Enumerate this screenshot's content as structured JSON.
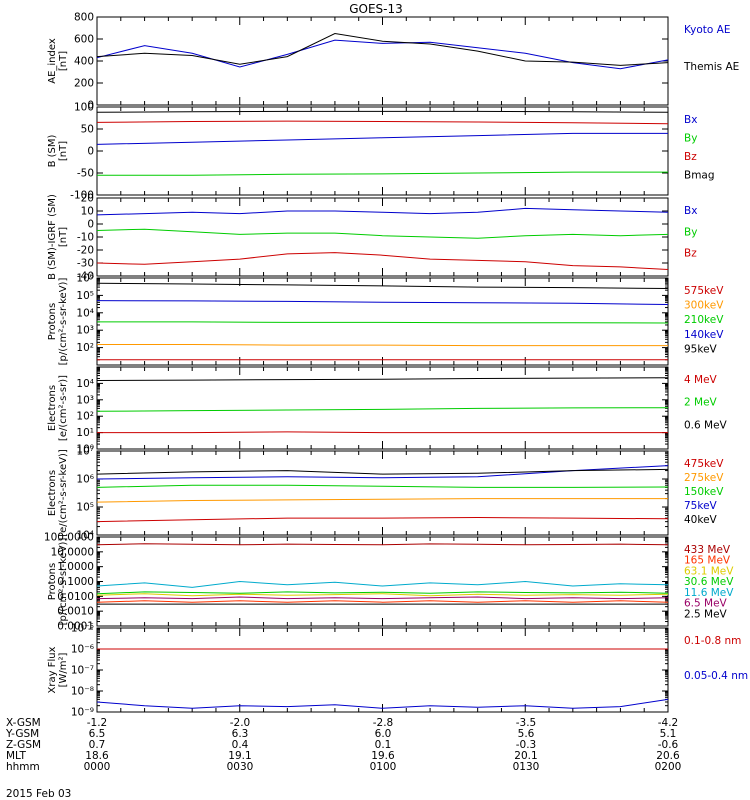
{
  "title": "GOES-13",
  "footer": {
    "rows": [
      {
        "label": "X-GSM",
        "values": [
          "-1.2",
          "-2.0",
          "-2.8",
          "-3.5",
          "-4.2"
        ]
      },
      {
        "label": "Y-GSM",
        "values": [
          "6.5",
          "6.3",
          "6.0",
          "5.6",
          "5.1"
        ]
      },
      {
        "label": "Z-GSM",
        "values": [
          "0.7",
          "0.4",
          "0.1",
          "-0.3",
          "-0.6"
        ]
      },
      {
        "label": "MLT",
        "values": [
          "18.6",
          "19.1",
          "19.6",
          "20.1",
          "20.6"
        ]
      },
      {
        "label": "hhmm",
        "values": [
          "0000",
          "0030",
          "0100",
          "0130",
          "0200"
        ]
      }
    ],
    "date": "2015 Feb 03"
  },
  "chart_data": [
    {
      "type": "line",
      "ylabel": [
        "AE_index",
        "[nT]"
      ],
      "scale": "linear",
      "ylim": [
        0,
        800
      ],
      "yticks": [
        0,
        200,
        400,
        600,
        800
      ],
      "ytick_labels": [
        "0",
        "200",
        "400",
        "600",
        "800"
      ],
      "x": [
        0,
        10,
        20,
        30,
        40,
        50,
        60,
        70,
        80,
        90,
        100,
        110,
        120
      ],
      "series": [
        {
          "name": "Kyoto AE",
          "color": "#0000cc",
          "values": [
            430,
            540,
            470,
            345,
            460,
            590,
            560,
            570,
            520,
            470,
            385,
            330,
            410
          ]
        },
        {
          "name": "Themis AE",
          "color": "#000000",
          "values": [
            440,
            470,
            450,
            370,
            440,
            650,
            580,
            555,
            490,
            400,
            390,
            360,
            385
          ]
        }
      ]
    },
    {
      "type": "line",
      "ylabel": [
        "B (SM)",
        "[nT]"
      ],
      "scale": "linear",
      "ylim": [
        -100,
        100
      ],
      "yticks": [
        -100,
        -50,
        0,
        50,
        100
      ],
      "ytick_labels": [
        "-100",
        "-50",
        "0",
        "50",
        "100"
      ],
      "x": [
        0,
        20,
        40,
        60,
        80,
        100,
        120
      ],
      "series": [
        {
          "name": "Bx",
          "color": "#0000cc",
          "values": [
            15,
            20,
            25,
            30,
            35,
            40,
            40
          ]
        },
        {
          "name": "By",
          "color": "#00cc00",
          "values": [
            -55,
            -55,
            -53,
            -52,
            -50,
            -48,
            -48
          ]
        },
        {
          "name": "Bz",
          "color": "#cc0000",
          "values": [
            65,
            67,
            68,
            67,
            66,
            64,
            62
          ]
        },
        {
          "name": "Bmag",
          "color": "#000000",
          "values": [
            88,
            89,
            90,
            90,
            90,
            89,
            88
          ]
        }
      ]
    },
    {
      "type": "line",
      "ylabel": [
        "B (SM)-IGRF (SM)",
        "[nT]"
      ],
      "scale": "linear",
      "ylim": [
        -40,
        20
      ],
      "yticks": [
        -40,
        -30,
        -20,
        -10,
        0,
        10,
        20
      ],
      "ytick_labels": [
        "-40",
        "-30",
        "-20",
        "-10",
        "0",
        "10",
        "20"
      ],
      "x": [
        0,
        10,
        20,
        30,
        40,
        50,
        60,
        70,
        80,
        90,
        100,
        110,
        120
      ],
      "series": [
        {
          "name": "Bx",
          "color": "#0000cc",
          "values": [
            7,
            8,
            9,
            8,
            10,
            10,
            9,
            8,
            9,
            12,
            11,
            10,
            9
          ]
        },
        {
          "name": "By",
          "color": "#00cc00",
          "values": [
            -5,
            -4,
            -6,
            -8,
            -7,
            -7,
            -9,
            -10,
            -11,
            -9,
            -8,
            -9,
            -8
          ]
        },
        {
          "name": "Bz",
          "color": "#cc0000",
          "values": [
            -30,
            -31,
            -29,
            -27,
            -23,
            -22,
            -24,
            -27,
            -28,
            -29,
            -32,
            -33,
            -35
          ]
        }
      ]
    },
    {
      "type": "line",
      "ylabel": [
        "Protons",
        "[p/(cm²-s-sr-keV)]"
      ],
      "scale": "log",
      "ylim": [
        10,
        1000000
      ],
      "yticks": [
        100,
        1000,
        10000,
        100000,
        1000000
      ],
      "ytick_labels": [
        "10²",
        "10³",
        "10⁴",
        "10⁵",
        "10⁶"
      ],
      "x": [
        0,
        20,
        40,
        60,
        80,
        100,
        120
      ],
      "series": [
        {
          "name": "575keV",
          "color": "#cc0000",
          "values": [
            20,
            20,
            20,
            20,
            20,
            20,
            20
          ]
        },
        {
          "name": "300keV",
          "color": "#ff9900",
          "values": [
            150,
            150,
            140,
            140,
            130,
            130,
            130
          ]
        },
        {
          "name": "210keV",
          "color": "#00cc00",
          "values": [
            3000,
            3000,
            2800,
            2800,
            2700,
            2700,
            2600
          ]
        },
        {
          "name": "140keV",
          "color": "#0000cc",
          "values": [
            50000,
            48000,
            45000,
            40000,
            38000,
            35000,
            30000
          ]
        },
        {
          "name": "95keV",
          "color": "#000000",
          "values": [
            500000,
            450000,
            400000,
            350000,
            300000,
            280000,
            250000
          ]
        }
      ]
    },
    {
      "type": "line",
      "ylabel": [
        "Electrons",
        "[e/(cm²-s-sr)]"
      ],
      "scale": "log",
      "ylim": [
        1,
        100000
      ],
      "yticks": [
        1,
        10,
        100,
        1000,
        10000
      ],
      "ytick_labels": [
        "10⁰",
        "10¹",
        "10²",
        "10³",
        "10⁴"
      ],
      "x": [
        0,
        20,
        40,
        60,
        80,
        100,
        120
      ],
      "series": [
        {
          "name": "4 MeV",
          "color": "#cc0000",
          "values": [
            10,
            10,
            11,
            10,
            10,
            10,
            10
          ]
        },
        {
          "name": "2 MeV",
          "color": "#00cc00",
          "values": [
            200,
            220,
            240,
            260,
            300,
            320,
            330
          ]
        },
        {
          "name": "0.6 MeV",
          "color": "#000000",
          "values": [
            15000,
            16000,
            17000,
            18000,
            20000,
            21000,
            22000
          ]
        }
      ]
    },
    {
      "type": "line",
      "ylabel": [
        "Electrons",
        "[e/(cm²-s-sr-keV)]"
      ],
      "scale": "log",
      "ylim": [
        10000,
        10000000
      ],
      "yticks": [
        10000,
        100000,
        1000000,
        10000000
      ],
      "ytick_labels": [
        "10⁴",
        "10⁵",
        "10⁶",
        "10⁷"
      ],
      "x": [
        0,
        20,
        40,
        60,
        80,
        100,
        120
      ],
      "series": [
        {
          "name": "475keV",
          "color": "#cc0000",
          "values": [
            30000,
            35000,
            40000,
            40000,
            42000,
            40000,
            38000
          ]
        },
        {
          "name": "275keV",
          "color": "#ff9900",
          "values": [
            150000,
            170000,
            180000,
            190000,
            200000,
            200000,
            200000
          ]
        },
        {
          "name": "150keV",
          "color": "#00cc00",
          "values": [
            500000,
            600000,
            600000,
            550000,
            500000,
            500000,
            520000
          ]
        },
        {
          "name": "75keV",
          "color": "#0000cc",
          "values": [
            1000000,
            1100000,
            1200000,
            1100000,
            1200000,
            2000000,
            3000000
          ]
        },
        {
          "name": "40keV",
          "color": "#000000",
          "values": [
            1500000,
            1800000,
            2000000,
            1500000,
            1600000,
            2000000,
            2200000
          ]
        }
      ]
    },
    {
      "type": "line",
      "ylabel": [
        "Protons",
        "[p/(cm²-s-sr-keV)]"
      ],
      "scale": "log",
      "ylim": [
        0.0001,
        100
      ],
      "yticks": [
        0.0001,
        0.001,
        0.01,
        0.1,
        1,
        10,
        100
      ],
      "ytick_labels": [
        "0.0001",
        "0.0010",
        "0.0100",
        "0.1000",
        "1.0000",
        "10.0000",
        "100.0000"
      ],
      "x": [
        0,
        10,
        20,
        30,
        40,
        50,
        60,
        70,
        80,
        90,
        100,
        110,
        120
      ],
      "series": [
        {
          "name": "433 MeV",
          "color": "#aa0000",
          "values": [
            30,
            35,
            32,
            30,
            33,
            31,
            30,
            34,
            32,
            30,
            31,
            33,
            30
          ]
        },
        {
          "name": "165 MeV",
          "color": "#ff3300",
          "values": [
            0.004,
            0.005,
            0.004,
            0.005,
            0.004,
            0.005,
            0.004,
            0.005,
            0.004,
            0.005,
            0.004,
            0.005,
            0.004
          ]
        },
        {
          "name": "63.1 MeV",
          "color": "#ddcc00",
          "values": [
            0.012,
            0.015,
            0.011,
            0.014,
            0.012,
            0.013,
            0.015,
            0.011,
            0.014,
            0.012,
            0.013,
            0.012,
            0.014
          ]
        },
        {
          "name": "30.6 MeV",
          "color": "#00cc00",
          "values": [
            0.015,
            0.02,
            0.018,
            0.016,
            0.02,
            0.017,
            0.019,
            0.016,
            0.02,
            0.018,
            0.017,
            0.019,
            0.016
          ]
        },
        {
          "name": "11.6 MeV",
          "color": "#00aacc",
          "values": [
            0.05,
            0.08,
            0.04,
            0.1,
            0.06,
            0.09,
            0.05,
            0.08,
            0.06,
            0.1,
            0.05,
            0.07,
            0.06
          ]
        },
        {
          "name": "6.5 MeV",
          "color": "#990066",
          "values": [
            0.007,
            0.008,
            0.007,
            0.009,
            0.007,
            0.008,
            0.007,
            0.008,
            0.009,
            0.007,
            0.008,
            0.007,
            0.008
          ]
        },
        {
          "name": "2.5 MeV",
          "color": "#000000",
          "values": [
            0.003,
            0.003,
            0.003,
            0.003,
            0.003,
            0.003,
            0.003,
            0.003,
            0.003,
            0.003,
            0.003,
            0.003,
            0.003
          ]
        }
      ]
    },
    {
      "type": "line",
      "ylabel": [
        "Xray Flux",
        "[W/m²]"
      ],
      "scale": "log",
      "ylim": [
        1e-09,
        1e-05
      ],
      "yticks": [
        1e-09,
        1e-08,
        1e-07,
        1e-06,
        1e-05
      ],
      "ytick_labels": [
        "10⁻⁹",
        "10⁻⁸",
        "10⁻⁷",
        "10⁻⁶",
        "10⁻⁵"
      ],
      "x": [
        0,
        10,
        20,
        30,
        40,
        50,
        60,
        70,
        80,
        90,
        100,
        110,
        120
      ],
      "series": [
        {
          "name": "0.1-0.8 nm",
          "color": "#cc0000",
          "values": [
            1e-06,
            1e-06,
            1e-06,
            1e-06,
            1e-06,
            1e-06,
            1e-06,
            1e-06,
            1e-06,
            1e-06,
            1e-06,
            1e-06,
            1e-06
          ]
        },
        {
          "name": "0.05-0.4 nm",
          "color": "#0000cc",
          "values": [
            3e-09,
            2e-09,
            1.5e-09,
            2e-09,
            1.8e-09,
            2.2e-09,
            1.5e-09,
            2e-09,
            1.7e-09,
            2e-09,
            1.5e-09,
            1.8e-09,
            4e-09
          ]
        }
      ]
    }
  ]
}
